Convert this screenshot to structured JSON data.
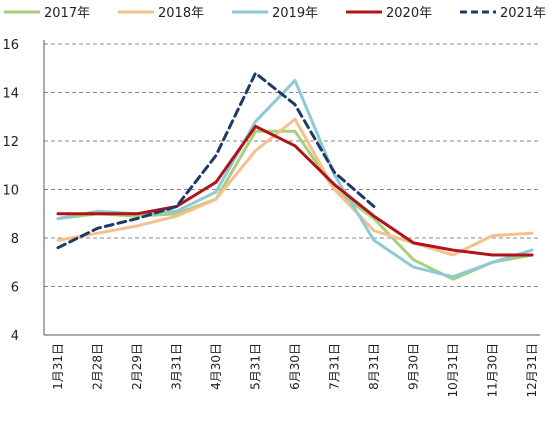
{
  "chart_data": {
    "type": "line",
    "title": "",
    "xlabel": "",
    "ylabel": "",
    "ylim": [
      4,
      16
    ],
    "yticks": [
      4,
      6,
      8,
      10,
      12,
      14,
      16
    ],
    "grid": "horizontal-dashed",
    "legend_position": "top",
    "categories": [
      "1月31日",
      "2月28日",
      "2月29日",
      "3月31日",
      "4月30日",
      "5月31日",
      "6月30日",
      "7月31日",
      "8月31日",
      "9月30日",
      "10月31日",
      "11月30日",
      "12月31日"
    ],
    "series": [
      {
        "name": "2017年",
        "color": "#a9cf7a",
        "dash": "solid",
        "values": [
          8.8,
          9.0,
          8.9,
          9.0,
          9.6,
          12.4,
          12.4,
          10.0,
          8.8,
          7.1,
          6.3,
          7.0,
          7.3
        ]
      },
      {
        "name": "2018年",
        "color": "#f5c08e",
        "dash": "solid",
        "values": [
          7.9,
          8.2,
          8.5,
          8.9,
          9.6,
          11.6,
          12.9,
          10.0,
          8.3,
          7.8,
          7.3,
          8.1,
          8.2
        ]
      },
      {
        "name": "2019年",
        "color": "#8fc9d6",
        "dash": "solid",
        "values": [
          8.8,
          9.1,
          9.0,
          9.1,
          9.9,
          12.8,
          14.5,
          10.6,
          7.9,
          6.8,
          6.4,
          7.0,
          7.5
        ]
      },
      {
        "name": "2020年",
        "color": "#b01419",
        "dash": "solid",
        "values": [
          9.0,
          9.0,
          9.0,
          9.3,
          10.3,
          12.6,
          11.8,
          10.2,
          8.9,
          7.8,
          7.5,
          7.3,
          7.3
        ]
      },
      {
        "name": "2021年",
        "color": "#1f3a63",
        "dash": "dashed",
        "values": [
          7.6,
          8.4,
          8.8,
          9.3,
          11.4,
          14.8,
          13.5,
          10.7,
          9.3,
          null,
          null,
          null,
          null
        ]
      }
    ]
  }
}
